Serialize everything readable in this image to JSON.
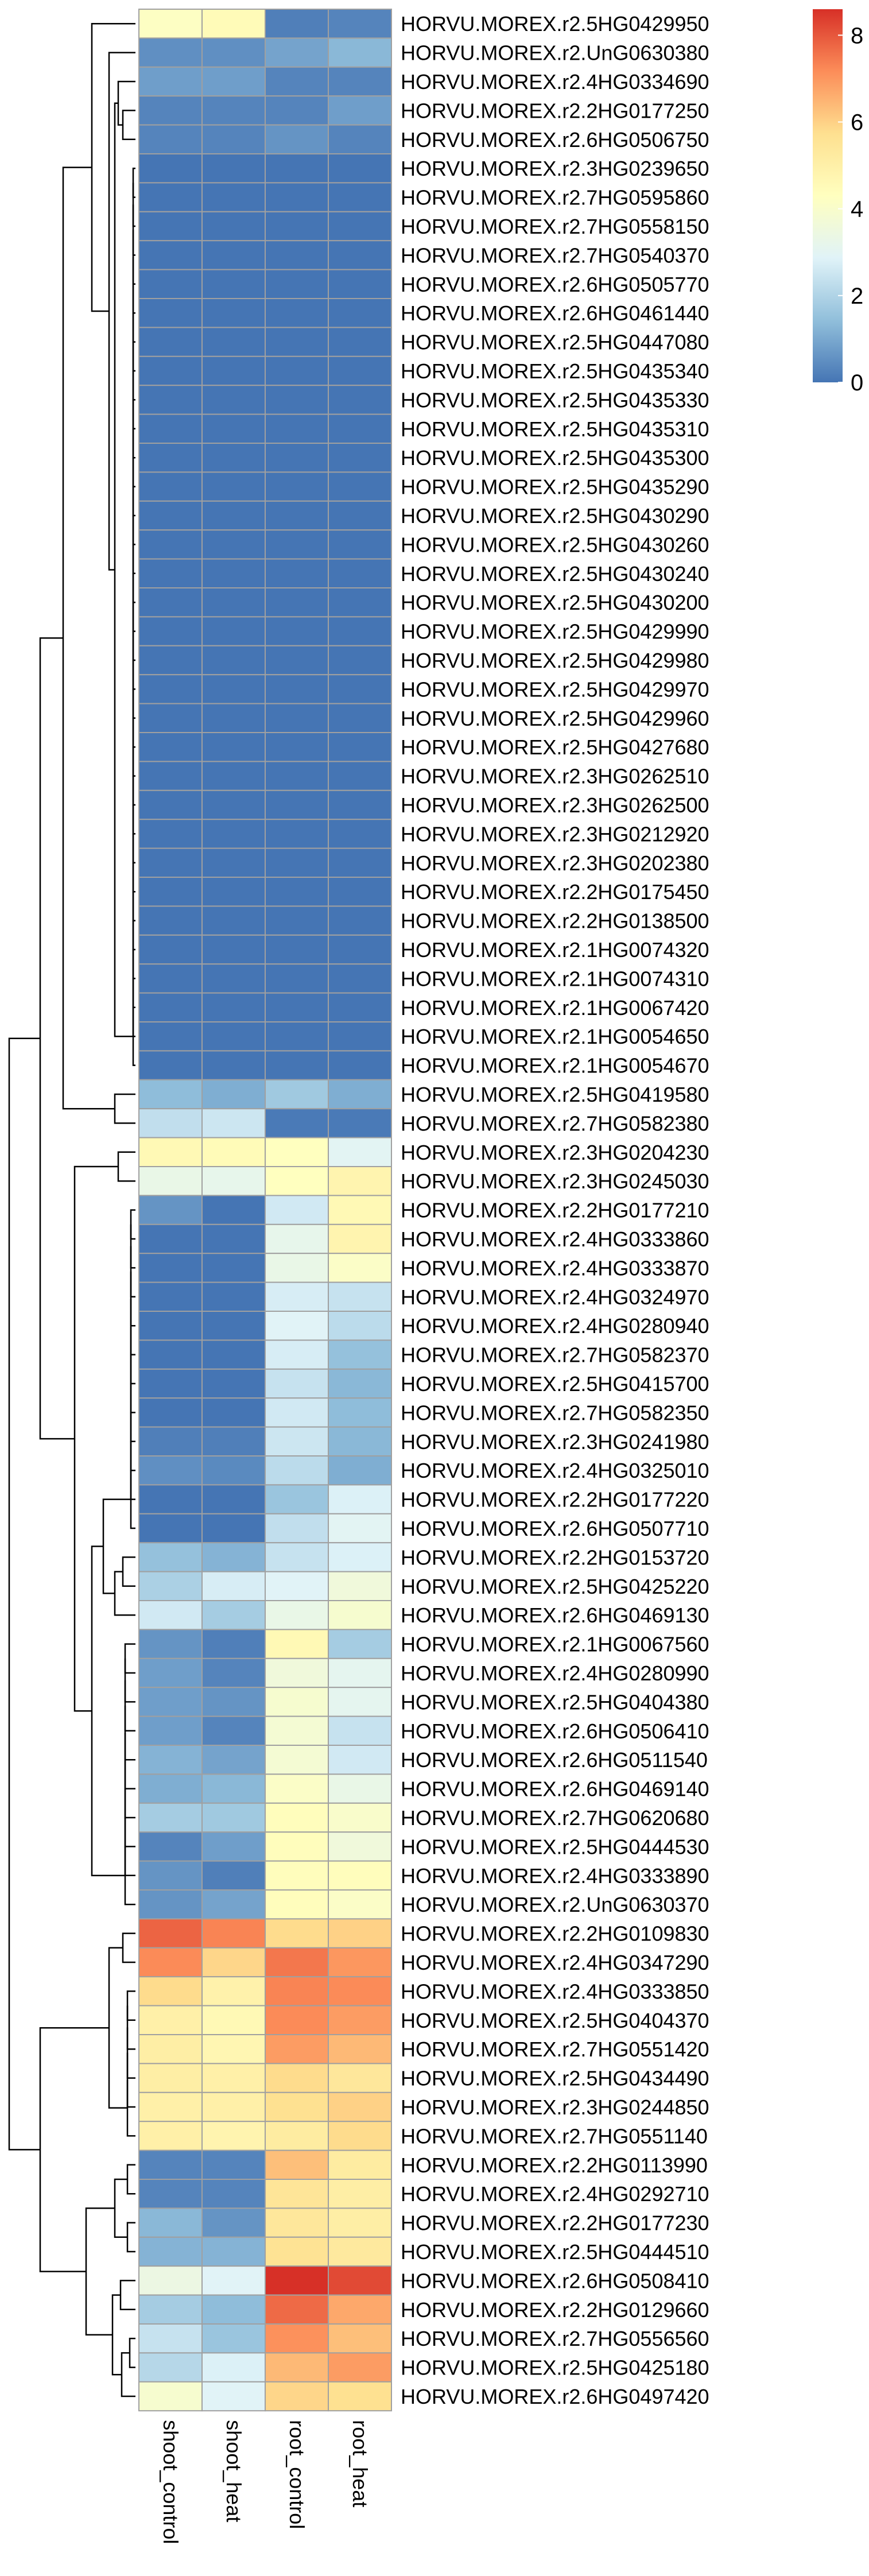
{
  "chart_data": {
    "type": "heatmap",
    "columns": [
      "shoot_control",
      "shoot_heat",
      "root_control",
      "root_heat"
    ],
    "rows": [
      "HORVU.MOREX.r2.5HG0429950",
      "HORVU.MOREX.r2.UnG0630380",
      "HORVU.MOREX.r2.4HG0334690",
      "HORVU.MOREX.r2.2HG0177250",
      "HORVU.MOREX.r2.6HG0506750",
      "HORVU.MOREX.r2.3HG0239650",
      "HORVU.MOREX.r2.7HG0595860",
      "HORVU.MOREX.r2.7HG0558150",
      "HORVU.MOREX.r2.7HG0540370",
      "HORVU.MOREX.r2.6HG0505770",
      "HORVU.MOREX.r2.6HG0461440",
      "HORVU.MOREX.r2.5HG0447080",
      "HORVU.MOREX.r2.5HG0435340",
      "HORVU.MOREX.r2.5HG0435330",
      "HORVU.MOREX.r2.5HG0435310",
      "HORVU.MOREX.r2.5HG0435300",
      "HORVU.MOREX.r2.5HG0435290",
      "HORVU.MOREX.r2.5HG0430290",
      "HORVU.MOREX.r2.5HG0430260",
      "HORVU.MOREX.r2.5HG0430240",
      "HORVU.MOREX.r2.5HG0430200",
      "HORVU.MOREX.r2.5HG0429990",
      "HORVU.MOREX.r2.5HG0429980",
      "HORVU.MOREX.r2.5HG0429970",
      "HORVU.MOREX.r2.5HG0429960",
      "HORVU.MOREX.r2.5HG0427680",
      "HORVU.MOREX.r2.3HG0262510",
      "HORVU.MOREX.r2.3HG0262500",
      "HORVU.MOREX.r2.3HG0212920",
      "HORVU.MOREX.r2.3HG0202380",
      "HORVU.MOREX.r2.2HG0175450",
      "HORVU.MOREX.r2.2HG0138500",
      "HORVU.MOREX.r2.1HG0074320",
      "HORVU.MOREX.r2.1HG0074310",
      "HORVU.MOREX.r2.1HG0067420",
      "HORVU.MOREX.r2.1HG0054650",
      "HORVU.MOREX.r2.1HG0054670",
      "HORVU.MOREX.r2.5HG0419580",
      "HORVU.MOREX.r2.7HG0582380",
      "HORVU.MOREX.r2.3HG0204230",
      "HORVU.MOREX.r2.3HG0245030",
      "HORVU.MOREX.r2.2HG0177210",
      "HORVU.MOREX.r2.4HG0333860",
      "HORVU.MOREX.r2.4HG0333870",
      "HORVU.MOREX.r2.4HG0324970",
      "HORVU.MOREX.r2.4HG0280940",
      "HORVU.MOREX.r2.7HG0582370",
      "HORVU.MOREX.r2.5HG0415700",
      "HORVU.MOREX.r2.7HG0582350",
      "HORVU.MOREX.r2.3HG0241980",
      "HORVU.MOREX.r2.4HG0325010",
      "HORVU.MOREX.r2.2HG0177220",
      "HORVU.MOREX.r2.6HG0507710",
      "HORVU.MOREX.r2.2HG0153720",
      "HORVU.MOREX.r2.5HG0425220",
      "HORVU.MOREX.r2.6HG0469130",
      "HORVU.MOREX.r2.1HG0067560",
      "HORVU.MOREX.r2.4HG0280990",
      "HORVU.MOREX.r2.5HG0404380",
      "HORVU.MOREX.r2.6HG0506410",
      "HORVU.MOREX.r2.6HG0511540",
      "HORVU.MOREX.r2.6HG0469140",
      "HORVU.MOREX.r2.7HG0620680",
      "HORVU.MOREX.r2.5HG0444530",
      "HORVU.MOREX.r2.4HG0333890",
      "HORVU.MOREX.r2.UnG0630370",
      "HORVU.MOREX.r2.2HG0109830",
      "HORVU.MOREX.r2.4HG0347290",
      "HORVU.MOREX.r2.4HG0333850",
      "HORVU.MOREX.r2.5HG0404370",
      "HORVU.MOREX.r2.7HG0551420",
      "HORVU.MOREX.r2.5HG0434490",
      "HORVU.MOREX.r2.3HG0244850",
      "HORVU.MOREX.r2.7HG0551140",
      "HORVU.MOREX.r2.2HG0113990",
      "HORVU.MOREX.r2.4HG0292710",
      "HORVU.MOREX.r2.2HG0177230",
      "HORVU.MOREX.r2.5HG0444510",
      "HORVU.MOREX.r2.6HG0508410",
      "HORVU.MOREX.r2.2HG0129660",
      "HORVU.MOREX.r2.7HG0556560",
      "HORVU.MOREX.r2.5HG0425180",
      "HORVU.MOREX.r2.6HG0497420"
    ],
    "values": [
      [
        4.2,
        4.5,
        0.2,
        0.3
      ],
      [
        0.5,
        0.5,
        0.9,
        1.3
      ],
      [
        0.8,
        0.8,
        0.3,
        0.3
      ],
      [
        0.3,
        0.3,
        0.3,
        0.8
      ],
      [
        0.3,
        0.3,
        0.6,
        0.3
      ],
      [
        0,
        0,
        0,
        0
      ],
      [
        0,
        0,
        0,
        0
      ],
      [
        0,
        0,
        0,
        0
      ],
      [
        0,
        0,
        0,
        0
      ],
      [
        0,
        0,
        0,
        0
      ],
      [
        0,
        0,
        0,
        0
      ],
      [
        0,
        0,
        0,
        0
      ],
      [
        0,
        0,
        0,
        0
      ],
      [
        0,
        0,
        0,
        0
      ],
      [
        0,
        0,
        0,
        0
      ],
      [
        0,
        0,
        0,
        0
      ],
      [
        0,
        0,
        0,
        0
      ],
      [
        0,
        0,
        0,
        0
      ],
      [
        0,
        0,
        0,
        0
      ],
      [
        0,
        0,
        0,
        0
      ],
      [
        0,
        0,
        0,
        0
      ],
      [
        0,
        0,
        0,
        0
      ],
      [
        0,
        0,
        0,
        0
      ],
      [
        0,
        0,
        0,
        0
      ],
      [
        0,
        0,
        0,
        0
      ],
      [
        0,
        0,
        0,
        0
      ],
      [
        0,
        0,
        0,
        0
      ],
      [
        0,
        0,
        0,
        0
      ],
      [
        0,
        0,
        0,
        0
      ],
      [
        0,
        0,
        0,
        0
      ],
      [
        0,
        0,
        0,
        0
      ],
      [
        0,
        0,
        0,
        0
      ],
      [
        0,
        0,
        0,
        0
      ],
      [
        0,
        0,
        0,
        0
      ],
      [
        0,
        0,
        0,
        0
      ],
      [
        0,
        0,
        0,
        0
      ],
      [
        0,
        0,
        0,
        0
      ],
      [
        1.4,
        1.1,
        1.7,
        1.1
      ],
      [
        2.3,
        2.5,
        0.1,
        0.1
      ],
      [
        4.6,
        4.5,
        4.3,
        3.0
      ],
      [
        3.3,
        3.2,
        4.3,
        4.8
      ],
      [
        0.6,
        0,
        2.6,
        4.6
      ],
      [
        0,
        0,
        3.2,
        4.8
      ],
      [
        0,
        0,
        3.3,
        4.1
      ],
      [
        0,
        0,
        2.7,
        2.4
      ],
      [
        0,
        0,
        2.9,
        2.2
      ],
      [
        0,
        0,
        2.7,
        1.5
      ],
      [
        0,
        0,
        2.4,
        1.3
      ],
      [
        0,
        0,
        2.6,
        1.4
      ],
      [
        0.2,
        0.2,
        2.5,
        1.3
      ],
      [
        0.5,
        0.4,
        2.2,
        1.1
      ],
      [
        0,
        0,
        1.6,
        2.8
      ],
      [
        0,
        0,
        2.3,
        3.0
      ],
      [
        1.5,
        1.2,
        2.4,
        2.8
      ],
      [
        1.9,
        2.7,
        2.9,
        3.6
      ],
      [
        2.6,
        1.8,
        3.3,
        3.9
      ],
      [
        0.6,
        0.2,
        4.6,
        1.8
      ],
      [
        0.8,
        0.3,
        3.6,
        3.1
      ],
      [
        0.8,
        0.6,
        3.9,
        3.1
      ],
      [
        0.8,
        0.3,
        3.8,
        2.4
      ],
      [
        1.2,
        0.9,
        3.8,
        2.6
      ],
      [
        1.1,
        1.3,
        4.1,
        3.3
      ],
      [
        1.8,
        1.7,
        4.4,
        4.0
      ],
      [
        0.3,
        0.8,
        4.4,
        3.6
      ],
      [
        0.6,
        0.2,
        4.4,
        4.4
      ],
      [
        0.6,
        0.9,
        4.4,
        4.1
      ],
      [
        7.8,
        7.3,
        5.8,
        6.0
      ],
      [
        7.2,
        5.9,
        7.5,
        7.0
      ],
      [
        5.8,
        4.9,
        7.3,
        7.2
      ],
      [
        5.0,
        4.6,
        7.2,
        6.9
      ],
      [
        5.1,
        4.7,
        6.9,
        6.4
      ],
      [
        5.1,
        5.0,
        5.8,
        5.4
      ],
      [
        5.0,
        5.0,
        5.7,
        6.0
      ],
      [
        5.0,
        4.8,
        5.2,
        5.8
      ],
      [
        0.3,
        0.3,
        6.3,
        5.2
      ],
      [
        0.3,
        0.3,
        5.5,
        5.1
      ],
      [
        1.3,
        0.6,
        5.4,
        5.1
      ],
      [
        1.2,
        1.2,
        5.6,
        5.3
      ],
      [
        3.4,
        2.9,
        8.6,
        8.2
      ],
      [
        1.8,
        1.4,
        7.7,
        6.7
      ],
      [
        2.4,
        1.6,
        7.1,
        6.3
      ],
      [
        2.1,
        2.8,
        6.4,
        6.9
      ],
      [
        3.9,
        2.9,
        5.9,
        5.7
      ]
    ],
    "color_scale": {
      "min": 0,
      "max": 8.6,
      "colors": [
        "#4575B4",
        "#91BFDB",
        "#E0F3F8",
        "#FFFFBF",
        "#FEE090",
        "#FC8D59",
        "#D73027"
      ]
    },
    "legend_ticks": [
      0,
      2,
      4,
      6,
      8
    ],
    "legend_placement": "top-right",
    "row_dendrogram": true,
    "grid": true
  }
}
